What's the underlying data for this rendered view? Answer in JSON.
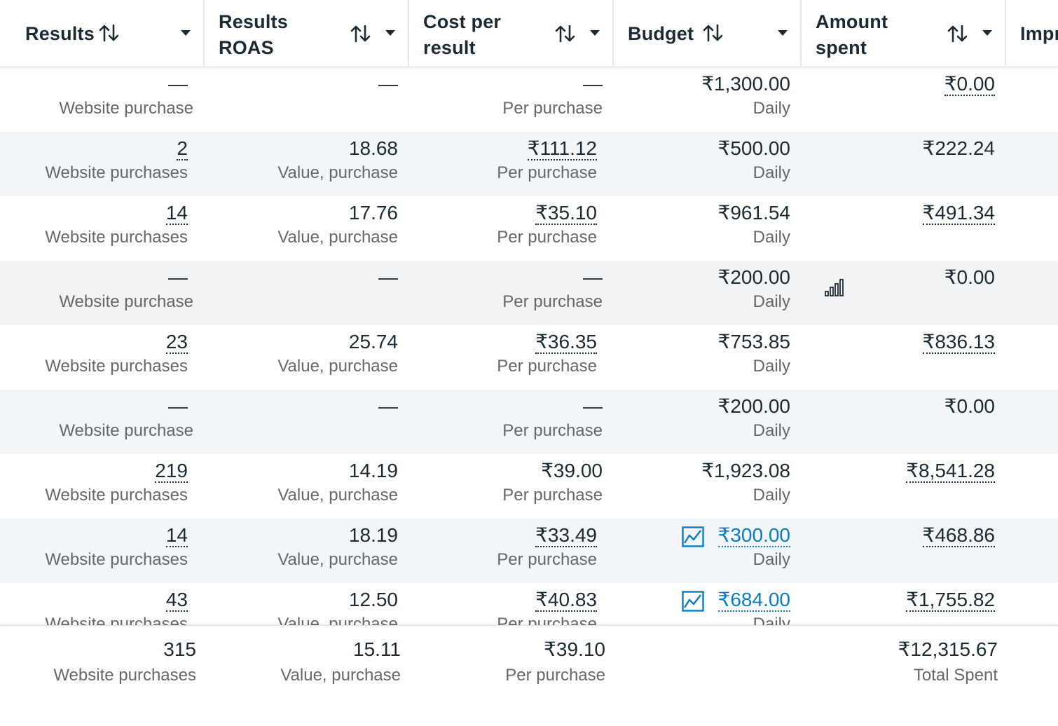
{
  "header": {
    "results": "Results",
    "results_roas_1": "Results",
    "results_roas_2": "ROAS",
    "cost_1": "Cost per",
    "cost_2": "result",
    "budget": "Budget",
    "amount_1": "Amount",
    "amount_2": "spent",
    "impressions_partial": "Impr"
  },
  "rows": [
    {
      "results": "—",
      "results_sub": "Website purchase",
      "roas": "—",
      "roas_sub": "",
      "cost": "—",
      "cost_sub": "Per purchase",
      "budget": "₹1,300.00",
      "budget_sub": "Daily",
      "spent": "₹0.00",
      "budget_icon": "",
      "spent_icon": ""
    },
    {
      "results": "2",
      "results_sub": "Website purchases",
      "roas": "18.68",
      "roas_sub": "Value, purchase",
      "cost": "₹111.12",
      "cost_sub": "Per purchase",
      "budget": "₹500.00",
      "budget_sub": "Daily",
      "spent": "₹222.24",
      "budget_icon": "",
      "spent_icon": ""
    },
    {
      "results": "14",
      "results_sub": "Website purchases",
      "roas": "17.76",
      "roas_sub": "Value, purchase",
      "cost": "₹35.10",
      "cost_sub": "Per purchase",
      "budget": "₹961.54",
      "budget_sub": "Daily",
      "spent": "₹491.34",
      "budget_icon": "",
      "spent_icon": ""
    },
    {
      "results": "—",
      "results_sub": "Website purchase",
      "roas": "—",
      "roas_sub": "",
      "cost": "—",
      "cost_sub": "Per purchase",
      "budget": "₹200.00",
      "budget_sub": "Daily",
      "spent": "₹0.00",
      "budget_icon": "",
      "spent_icon": "bar-chart-icon"
    },
    {
      "results": "23",
      "results_sub": "Website purchases",
      "roas": "25.74",
      "roas_sub": "Value, purchase",
      "cost": "₹36.35",
      "cost_sub": "Per purchase",
      "budget": "₹753.85",
      "budget_sub": "Daily",
      "spent": "₹836.13",
      "budget_icon": "",
      "spent_icon": ""
    },
    {
      "results": "—",
      "results_sub": "Website purchase",
      "roas": "—",
      "roas_sub": "",
      "cost": "—",
      "cost_sub": "Per purchase",
      "budget": "₹200.00",
      "budget_sub": "Daily",
      "spent": "₹0.00",
      "budget_icon": "",
      "spent_icon": ""
    },
    {
      "results": "219",
      "results_sub": "Website purchases",
      "roas": "14.19",
      "roas_sub": "Value, purchase",
      "cost": "₹39.00",
      "cost_sub": "Per purchase",
      "budget": "₹1,923.08",
      "budget_sub": "Daily",
      "spent": "₹8,541.28",
      "budget_icon": "",
      "spent_icon": ""
    },
    {
      "results": "14",
      "results_sub": "Website purchases",
      "roas": "18.19",
      "roas_sub": "Value, purchase",
      "cost": "₹33.49",
      "cost_sub": "Per purchase",
      "budget": "₹300.00",
      "budget_sub": "Daily",
      "spent": "₹468.86",
      "budget_icon": "trend-chart-icon",
      "spent_icon": ""
    },
    {
      "results": "43",
      "results_sub": "Website purchases",
      "roas": "12.50",
      "roas_sub": "Value, purchase",
      "cost": "₹40.83",
      "cost_sub": "Per purchase",
      "budget": "₹684.00",
      "budget_sub": "Daily",
      "spent": "₹1,755.82",
      "budget_icon": "trend-chart-icon",
      "spent_icon": ""
    }
  ],
  "totals": {
    "results": "315",
    "results_sub": "Website purchases",
    "roas": "15.11",
    "roas_sub": "Value, purchase",
    "cost": "₹39.10",
    "cost_sub": "Per purchase",
    "spent": "₹12,315.67",
    "spent_sub": "Total Spent"
  },
  "colors": {
    "text": "#1c2b33",
    "subtext": "#65676b",
    "link": "#0a7cc1",
    "alt_row": "#f3f6f8"
  }
}
